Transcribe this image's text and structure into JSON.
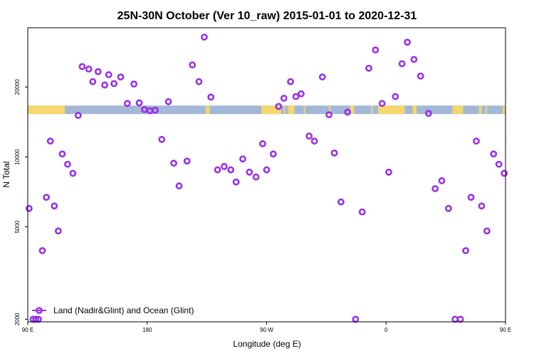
{
  "chart_data": {
    "type": "scatter",
    "title": "25N-30N October (Ver 10_raw)   2015-01-01 to 2020-12-31",
    "xlabel": "Longitude (deg E)",
    "ylabel": "N Total",
    "xlim": [
      90,
      450
    ],
    "ylim": [
      1950,
      36000
    ],
    "y_scale": "log",
    "grid": false,
    "legend_position": "bottom-left",
    "x_ticks": [
      {
        "value": 90,
        "label": "90 E"
      },
      {
        "value": 180,
        "label": "180"
      },
      {
        "value": 270,
        "label": "90 W"
      },
      {
        "value": 360,
        "label": "0"
      },
      {
        "value": 450,
        "label": "90 E"
      },
      {
        "value": 540,
        "label": "180"
      }
    ],
    "y_ticks": [
      {
        "value": 2000,
        "label": "2000"
      },
      {
        "value": 5000,
        "label": "5000"
      },
      {
        "value": 10000,
        "label": "10000"
      },
      {
        "value": 20000,
        "label": "20000"
      }
    ],
    "colors": {
      "points": "#9b30e8",
      "land": "#f5d76e",
      "ocean": "#a3b8d6"
    },
    "land_ocean_band": {
      "y_range": [
        15300,
        16650
      ],
      "land_segments": [
        [
          90,
          118
        ],
        [
          224,
          227
        ],
        [
          266,
          281
        ],
        [
          283,
          284
        ],
        [
          286,
          291
        ],
        [
          298,
          299
        ],
        [
          317,
          318
        ],
        [
          333,
          336
        ],
        [
          349,
          350
        ],
        [
          354,
          374
        ],
        [
          380,
          383
        ],
        [
          410,
          418
        ],
        [
          430,
          432
        ],
        [
          435,
          436
        ],
        [
          448,
          547
        ]
      ]
    },
    "series": [
      {
        "name": "Land (Nadir&Glint) and Ocean (Glint)",
        "color": "#9b30e8",
        "points": [
          [
            91,
            6000
          ],
          [
            94,
            2000
          ],
          [
            96,
            2000
          ],
          [
            98,
            2000
          ],
          [
            101,
            3950
          ],
          [
            104,
            6700
          ],
          [
            107,
            11700
          ],
          [
            110,
            6150
          ],
          [
            113,
            4800
          ],
          [
            116,
            10300
          ],
          [
            120,
            9300
          ],
          [
            124,
            8500
          ],
          [
            128,
            15100
          ],
          [
            131,
            24500
          ],
          [
            136,
            23900
          ],
          [
            139,
            21100
          ],
          [
            143,
            23300
          ],
          [
            148,
            20400
          ],
          [
            151,
            22600
          ],
          [
            155,
            20700
          ],
          [
            160,
            22100
          ],
          [
            165,
            17000
          ],
          [
            170,
            20600
          ],
          [
            174,
            17100
          ],
          [
            178,
            16000
          ],
          [
            182,
            15800
          ],
          [
            186,
            15900
          ],
          [
            191,
            11900
          ],
          [
            196,
            17300
          ],
          [
            200,
            9400
          ],
          [
            204,
            7500
          ],
          [
            210,
            9600
          ],
          [
            214,
            24900
          ],
          [
            219,
            21100
          ],
          [
            223,
            32800
          ],
          [
            228,
            18100
          ],
          [
            233,
            8800
          ],
          [
            238,
            9100
          ],
          [
            243,
            8800
          ],
          [
            247,
            7800
          ],
          [
            252,
            9800
          ],
          [
            257,
            8600
          ],
          [
            262,
            8200
          ],
          [
            267,
            11400
          ],
          [
            270,
            8800
          ],
          [
            275,
            10300
          ],
          [
            279,
            16500
          ],
          [
            283,
            17900
          ],
          [
            288,
            21100
          ],
          [
            292,
            18200
          ],
          [
            296,
            18700
          ],
          [
            302,
            12300
          ],
          [
            306,
            11700
          ],
          [
            312,
            22100
          ],
          [
            317,
            15200
          ],
          [
            321,
            10400
          ],
          [
            326,
            6400
          ],
          [
            331,
            15600
          ],
          [
            337,
            2000
          ],
          [
            342,
            5800
          ],
          [
            347,
            24100
          ],
          [
            352,
            28900
          ],
          [
            357,
            17000
          ],
          [
            362,
            8600
          ],
          [
            367,
            18200
          ],
          [
            372,
            25200
          ],
          [
            376,
            31200
          ],
          [
            381,
            26300
          ],
          [
            386,
            22300
          ],
          [
            392,
            15400
          ],
          [
            397,
            7300
          ],
          [
            402,
            7900
          ],
          [
            407,
            6000
          ],
          [
            412,
            2000
          ],
          [
            416,
            2000
          ],
          [
            420,
            3950
          ],
          [
            424,
            6700
          ],
          [
            428,
            11700
          ],
          [
            432,
            6150
          ],
          [
            436,
            4800
          ],
          [
            441,
            10300
          ],
          [
            445,
            9300
          ],
          [
            449,
            8500
          ]
        ]
      }
    ]
  }
}
